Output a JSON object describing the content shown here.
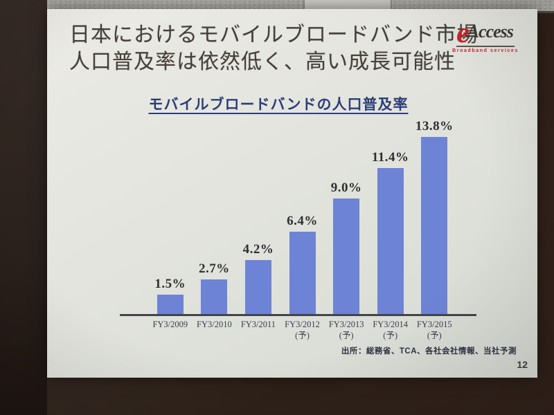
{
  "slide": {
    "title_line1": "日本におけるモバイルブロードバンド市場",
    "title_line2": "人口普及率は依然低く、高い成長可能性",
    "source": "出所：総務省、TCA、各社会社情報、当社予測",
    "page_number": "12"
  },
  "logo": {
    "e": "e",
    "name": "Access",
    "tagline": "Broadband services",
    "accent_color": "#c8232b"
  },
  "chart_data": {
    "type": "bar",
    "title": "モバイルブロードバンドの人口普及率",
    "title_color": "#2c3e78",
    "categories": [
      "FY3/2009",
      "FY3/2010",
      "FY3/2011",
      "FY3/2012",
      "FY3/2013",
      "FY3/2014",
      "FY3/2015"
    ],
    "category_notes": [
      "",
      "",
      "",
      "(予)",
      "(予)",
      "(予)",
      "(予)"
    ],
    "values": [
      1.5,
      2.7,
      4.2,
      6.4,
      9.0,
      11.4,
      13.8
    ],
    "value_labels": [
      "1.5%",
      "2.7%",
      "4.2%",
      "6.4%",
      "9.0%",
      "11.4%",
      "13.8%"
    ],
    "ylim": [
      0,
      15
    ],
    "grid": false,
    "legend": null,
    "bar_color": "#6d83d5"
  }
}
